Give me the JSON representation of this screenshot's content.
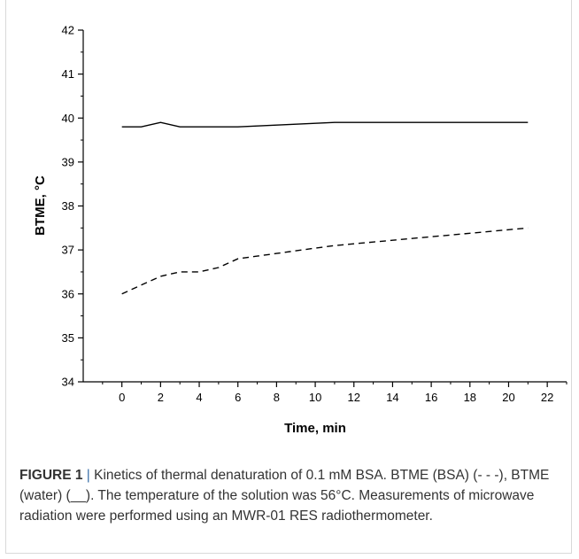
{
  "chart_data": {
    "type": "line",
    "xlabel": "Time, min",
    "ylabel": "BTME, °C",
    "xlim": [
      -2,
      23
    ],
    "ylim": [
      34,
      42
    ],
    "xticks": [
      0,
      2,
      4,
      6,
      8,
      10,
      12,
      14,
      16,
      18,
      20,
      22
    ],
    "yticks": [
      34,
      35,
      36,
      37,
      38,
      39,
      40,
      41,
      42
    ],
    "series": [
      {
        "style": "solid",
        "x": [
          0,
          1,
          2,
          3,
          4,
          5,
          6,
          7,
          8,
          9,
          10,
          11,
          12,
          13,
          14,
          15,
          16,
          17,
          18,
          19,
          20,
          21
        ],
        "y": [
          39.8,
          39.8,
          39.9,
          39.8,
          39.8,
          39.8,
          39.8,
          39.82,
          39.84,
          39.86,
          39.88,
          39.9,
          39.9,
          39.9,
          39.9,
          39.9,
          39.9,
          39.9,
          39.9,
          39.9,
          39.9,
          39.9
        ]
      },
      {
        "style": "dashed",
        "x": [
          0,
          1,
          2,
          3,
          4,
          5,
          6,
          7,
          8,
          9,
          10,
          11,
          12,
          13,
          14,
          15,
          16,
          17,
          18,
          19,
          20,
          21
        ],
        "y": [
          36.0,
          36.2,
          36.4,
          36.5,
          36.5,
          36.6,
          36.8,
          36.86,
          36.92,
          36.98,
          37.04,
          37.1,
          37.14,
          37.18,
          37.22,
          37.26,
          37.3,
          37.34,
          37.38,
          37.42,
          37.46,
          37.5
        ]
      }
    ],
    "grid": false,
    "legend": "none",
    "colors": {
      "line": "#000000"
    }
  },
  "caption": {
    "label": "FIGURE 1",
    "separator": "|",
    "text": " Kinetics of thermal denaturation of 0.1 mM BSA. BTME (BSA) (- - -), BTME (water) (__). The temperature of the solution was 56°C. Measurements of microwave radiation were performed using an MWR-01 RES radiothermometer.",
    "colors": {
      "separator": "#3a6fa8"
    }
  }
}
